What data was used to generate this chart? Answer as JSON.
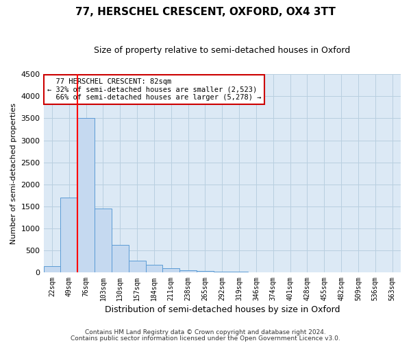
{
  "title": "77, HERSCHEL CRESCENT, OXFORD, OX4 3TT",
  "subtitle": "Size of property relative to semi-detached houses in Oxford",
  "xlabel": "Distribution of semi-detached houses by size in Oxford",
  "ylabel": "Number of semi-detached properties",
  "bin_labels": [
    "22sqm",
    "49sqm",
    "76sqm",
    "103sqm",
    "130sqm",
    "157sqm",
    "184sqm",
    "211sqm",
    "238sqm",
    "265sqm",
    "292sqm",
    "319sqm",
    "346sqm",
    "374sqm",
    "401sqm",
    "428sqm",
    "455sqm",
    "482sqm",
    "509sqm",
    "536sqm",
    "563sqm"
  ],
  "bar_values": [
    150,
    1700,
    3500,
    1450,
    625,
    275,
    175,
    100,
    60,
    40,
    30,
    20,
    10,
    10,
    5,
    5,
    5,
    3,
    3,
    3,
    3
  ],
  "bar_color": "#c5d9f0",
  "bar_edge_color": "#5b9bd5",
  "red_line_bin_index": 2,
  "ylim": [
    0,
    4500
  ],
  "yticks": [
    0,
    500,
    1000,
    1500,
    2000,
    2500,
    3000,
    3500,
    4000,
    4500
  ],
  "property_label": "77 HERSCHEL CRESCENT: 82sqm",
  "smaller_pct": "32%",
  "smaller_count": "2,523",
  "larger_pct": "66%",
  "larger_count": "5,278",
  "footnote1": "Contains HM Land Registry data © Crown copyright and database right 2024.",
  "footnote2": "Contains public sector information licensed under the Open Government Licence v3.0.",
  "bg_color": "#ffffff",
  "plot_bg_color": "#dce9f5",
  "grid_color": "#b8cfe0",
  "annotation_box_color": "#ffffff",
  "annotation_box_edge": "#cc0000"
}
